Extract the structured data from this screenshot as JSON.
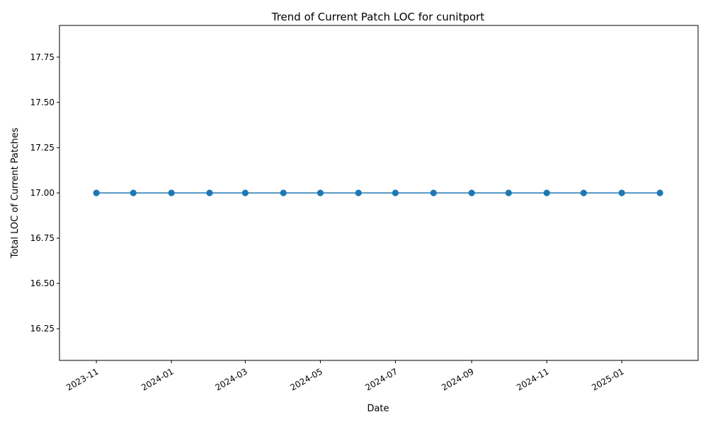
{
  "chart_data": {
    "type": "line",
    "title": "Trend of Current Patch LOC for cunitport",
    "xlabel": "Date",
    "ylabel": "Total LOC of Current Patches",
    "x": [
      "2023-11-01",
      "2023-12-01",
      "2024-01-01",
      "2024-02-01",
      "2024-03-01",
      "2024-04-01",
      "2024-05-01",
      "2024-06-01",
      "2024-07-01",
      "2024-08-01",
      "2024-09-01",
      "2024-10-01",
      "2024-11-01",
      "2024-12-01",
      "2025-01-01",
      "2025-02-01"
    ],
    "series": [
      {
        "values": [
          17,
          17,
          17,
          17,
          17,
          17,
          17,
          17,
          17,
          17,
          17,
          17,
          17,
          17,
          17,
          17
        ],
        "color": "#1f77b4",
        "marker": "circle"
      }
    ],
    "xlim": [
      "2023-10-02",
      "2025-03-04"
    ],
    "ylim": [
      16.075,
      17.925
    ],
    "x_ticks": [
      "2023-11",
      "2024-01",
      "2024-03",
      "2024-05",
      "2024-07",
      "2024-09",
      "2024-11",
      "2025-01"
    ],
    "y_ticks": [
      "16.25",
      "16.50",
      "16.75",
      "17.00",
      "17.25",
      "17.50",
      "17.75"
    ],
    "grid": false,
    "legend": "none"
  }
}
